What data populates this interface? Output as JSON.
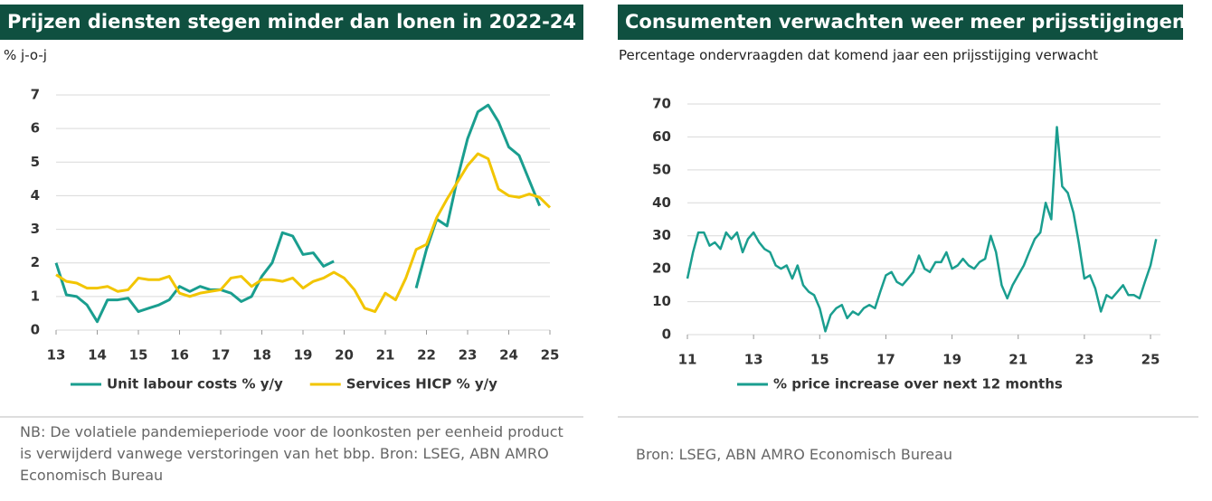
{
  "chart_data": [
    {
      "type": "line",
      "title": "Prijzen diensten stegen minder dan lonen in 2022-24",
      "ylabel": "% j-o-j",
      "note": "NB: De volatiele pandemieperiode voor de loonkosten per eenheid product is verwijderd vanwege verstoringen van het bbp. Bron: LSEG, ABN AMRO Economisch Bureau",
      "xlim": [
        13,
        25
      ],
      "xticks": [
        13,
        14,
        15,
        16,
        17,
        18,
        19,
        20,
        21,
        22,
        23,
        24,
        25
      ],
      "ylim": [
        0,
        7
      ],
      "yticks": [
        0,
        1,
        2,
        3,
        4,
        5,
        6,
        7
      ],
      "grid": true,
      "legend": "bottom",
      "x": [
        13,
        13.25,
        13.5,
        13.75,
        14,
        14.25,
        14.5,
        14.75,
        15,
        15.25,
        15.5,
        15.75,
        16,
        16.25,
        16.5,
        16.75,
        17,
        17.25,
        17.5,
        17.75,
        18,
        18.25,
        18.5,
        18.75,
        19,
        19.25,
        19.5,
        19.75,
        20,
        20.25,
        20.5,
        20.75,
        21,
        21.25,
        21.5,
        21.75,
        22,
        22.25,
        22.5,
        22.75,
        23,
        23.25,
        23.5,
        23.75,
        24,
        24.25,
        24.5,
        24.75,
        25
      ],
      "series": [
        {
          "name": "Unit labour costs % y/y",
          "color": "#1a9e8f",
          "values": [
            2.0,
            1.05,
            1.0,
            0.75,
            0.25,
            0.9,
            0.9,
            0.95,
            0.55,
            0.65,
            0.75,
            0.9,
            1.3,
            1.15,
            1.3,
            1.2,
            1.2,
            1.1,
            0.85,
            1.0,
            1.6,
            2.0,
            2.9,
            2.8,
            2.25,
            2.3,
            1.9,
            2.05,
            null,
            null,
            null,
            null,
            null,
            null,
            null,
            1.25,
            2.4,
            3.3,
            3.1,
            4.5,
            5.7,
            6.5,
            6.7,
            6.2,
            5.45,
            5.2,
            4.45,
            3.7,
            null
          ]
        },
        {
          "name": "Services HICP % y/y",
          "color": "#f2c500",
          "values": [
            1.65,
            1.45,
            1.4,
            1.25,
            1.25,
            1.3,
            1.15,
            1.2,
            1.55,
            1.5,
            1.5,
            1.6,
            1.1,
            1.0,
            1.1,
            1.15,
            1.2,
            1.55,
            1.6,
            1.3,
            1.5,
            1.5,
            1.45,
            1.55,
            1.25,
            1.45,
            1.55,
            1.72,
            1.55,
            1.2,
            0.65,
            0.55,
            1.1,
            0.9,
            1.55,
            2.4,
            2.55,
            3.35,
            3.9,
            4.4,
            4.9,
            5.25,
            5.1,
            4.2,
            4.0,
            3.95,
            4.05,
            3.95,
            3.65
          ]
        }
      ]
    },
    {
      "type": "line",
      "title": "Consumenten verwachten weer meer prijsstijgingen",
      "subtitle": "Percentage ondervraagden dat komend jaar een prijsstijging verwacht",
      "note": "Bron: LSEG, ABN AMRO Economisch Bureau",
      "xlim": [
        11,
        25.3
      ],
      "xticks": [
        11,
        13,
        15,
        17,
        19,
        21,
        23,
        25
      ],
      "ylim": [
        0,
        70
      ],
      "yticks": [
        0,
        10,
        20,
        30,
        40,
        50,
        60,
        70
      ],
      "grid": true,
      "legend": "bottom",
      "x": [
        11,
        11.17,
        11.33,
        11.5,
        11.67,
        11.83,
        12,
        12.17,
        12.33,
        12.5,
        12.67,
        12.83,
        13,
        13.17,
        13.33,
        13.5,
        13.67,
        13.83,
        14,
        14.17,
        14.33,
        14.5,
        14.67,
        14.83,
        15,
        15.17,
        15.33,
        15.5,
        15.67,
        15.83,
        16,
        16.17,
        16.33,
        16.5,
        16.67,
        16.83,
        17,
        17.17,
        17.33,
        17.5,
        17.67,
        17.83,
        18,
        18.17,
        18.33,
        18.5,
        18.67,
        18.83,
        19,
        19.17,
        19.33,
        19.5,
        19.67,
        19.83,
        20,
        20.17,
        20.33,
        20.5,
        20.67,
        20.83,
        21,
        21.17,
        21.33,
        21.5,
        21.67,
        21.83,
        22,
        22.17,
        22.33,
        22.5,
        22.67,
        22.83,
        23,
        23.17,
        23.33,
        23.5,
        23.67,
        23.83,
        24,
        24.17,
        24.33,
        24.5,
        24.67,
        24.83,
        25,
        25.17
      ],
      "series": [
        {
          "name": "% price increase over next 12 months",
          "color": "#1a9e8f",
          "values": [
            17,
            25,
            31,
            31,
            27,
            28,
            26,
            31,
            29,
            31,
            25,
            29,
            31,
            28,
            26,
            25,
            21,
            20,
            21,
            17,
            21,
            15,
            13,
            12,
            8,
            1,
            6,
            8,
            9,
            5,
            7,
            6,
            8,
            9,
            8,
            13,
            18,
            19,
            16,
            15,
            17,
            19,
            24,
            20,
            19,
            22,
            22,
            25,
            20,
            21,
            23,
            21,
            20,
            22,
            23,
            30,
            25,
            15,
            11,
            15,
            18,
            21,
            25,
            29,
            31,
            40,
            35,
            63,
            45,
            43,
            37,
            28,
            17,
            18,
            14,
            7,
            12,
            11,
            13,
            15,
            12,
            12,
            11,
            16,
            21,
            29
          ]
        }
      ]
    }
  ]
}
